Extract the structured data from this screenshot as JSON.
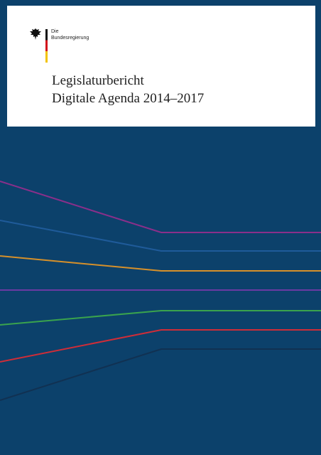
{
  "cover": {
    "publisher_lines": [
      "Die",
      "Bundesregierung"
    ],
    "title_line_1": "Legislaturbericht",
    "title_line_2": "Digitale Agenda 2014–2017"
  },
  "palette": {
    "background": "#0c416b",
    "card": "#ffffff",
    "title": "#1f1f1f",
    "stripe_colors": [
      "#8a2f8a",
      "#1f5b9a",
      "#d6902a",
      "#6b3aa3",
      "#3aa34d",
      "#cf2d38",
      "#113152"
    ]
  },
  "icons": {
    "logo": "federal-eagle-icon"
  }
}
